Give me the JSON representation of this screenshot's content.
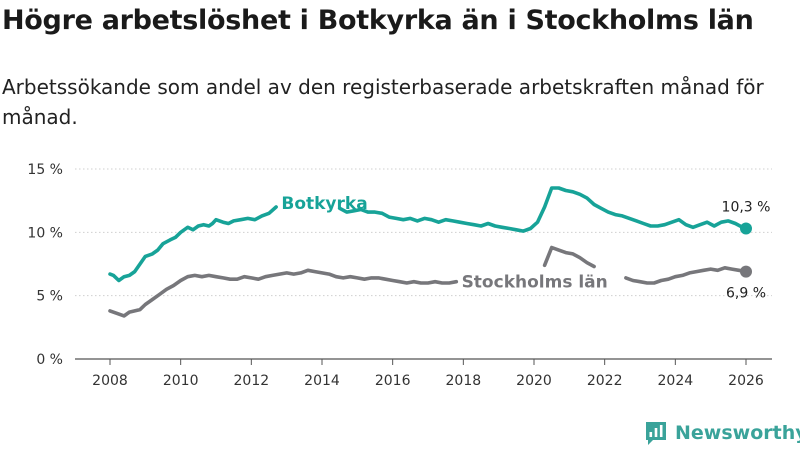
{
  "title": "Högre arbetslöshet i Botkyrka än i Stockholms län",
  "subtitle": "Arbetssökande som andel av den registerbaserade arbetskraften månad för månad.",
  "brand": {
    "name": "Newsworthy",
    "color": "#3aa39a"
  },
  "chart_data": {
    "type": "line",
    "xlabel": "",
    "ylabel": "",
    "xlim": [
      2007.5,
      2027.0
    ],
    "ylim": [
      0,
      15
    ],
    "y_ticks": [
      {
        "value": 0,
        "label": "0 %"
      },
      {
        "value": 5,
        "label": "5 %"
      },
      {
        "value": 10,
        "label": "10 %"
      },
      {
        "value": 15,
        "label": "15 %"
      }
    ],
    "x_ticks": [
      {
        "value": 2008,
        "label": "2008"
      },
      {
        "value": 2010,
        "label": "2010"
      },
      {
        "value": 2012,
        "label": "2012"
      },
      {
        "value": 2014,
        "label": "2014"
      },
      {
        "value": 2016,
        "label": "2016"
      },
      {
        "value": 2018,
        "label": "2018"
      },
      {
        "value": 2020,
        "label": "2020"
      },
      {
        "value": 2022,
        "label": "2022"
      },
      {
        "value": 2024,
        "label": "2024"
      },
      {
        "value": 2026,
        "label": "2026"
      }
    ],
    "grid": "horizontal",
    "series": [
      {
        "name": "Botkyrka",
        "color": "#17a398",
        "end_label": "10,3 %",
        "segments": [
          [
            [
              2008.0,
              6.7
            ],
            [
              2008.1,
              6.6
            ],
            [
              2008.25,
              6.2
            ],
            [
              2008.4,
              6.5
            ],
            [
              2008.55,
              6.6
            ],
            [
              2008.7,
              6.9
            ],
            [
              2008.85,
              7.5
            ],
            [
              2009.0,
              8.1
            ],
            [
              2009.2,
              8.3
            ],
            [
              2009.35,
              8.6
            ],
            [
              2009.5,
              9.1
            ],
            [
              2009.7,
              9.4
            ],
            [
              2009.85,
              9.6
            ],
            [
              2010.0,
              10.0
            ],
            [
              2010.2,
              10.4
            ],
            [
              2010.35,
              10.2
            ],
            [
              2010.5,
              10.5
            ],
            [
              2010.65,
              10.6
            ],
            [
              2010.8,
              10.5
            ],
            [
              2010.9,
              10.7
            ],
            [
              2011.0,
              11.0
            ],
            [
              2011.2,
              10.8
            ],
            [
              2011.35,
              10.7
            ],
            [
              2011.5,
              10.9
            ],
            [
              2011.7,
              11.0
            ],
            [
              2011.9,
              11.1
            ],
            [
              2012.1,
              11.0
            ],
            [
              2012.3,
              11.3
            ],
            [
              2012.5,
              11.5
            ],
            [
              2012.7,
              12.0
            ]
          ],
          [
            [
              2014.5,
              11.9
            ],
            [
              2014.7,
              11.6
            ],
            [
              2014.9,
              11.7
            ],
            [
              2015.1,
              11.8
            ],
            [
              2015.3,
              11.6
            ],
            [
              2015.5,
              11.6
            ],
            [
              2015.7,
              11.5
            ],
            [
              2015.9,
              11.2
            ],
            [
              2016.1,
              11.1
            ],
            [
              2016.3,
              11.0
            ],
            [
              2016.5,
              11.1
            ],
            [
              2016.7,
              10.9
            ],
            [
              2016.9,
              11.1
            ],
            [
              2017.1,
              11.0
            ],
            [
              2017.3,
              10.8
            ],
            [
              2017.5,
              11.0
            ],
            [
              2017.7,
              10.9
            ],
            [
              2017.9,
              10.8
            ],
            [
              2018.1,
              10.7
            ],
            [
              2018.3,
              10.6
            ],
            [
              2018.5,
              10.5
            ],
            [
              2018.7,
              10.7
            ],
            [
              2018.9,
              10.5
            ],
            [
              2019.1,
              10.4
            ],
            [
              2019.3,
              10.3
            ],
            [
              2019.5,
              10.2
            ],
            [
              2019.7,
              10.1
            ],
            [
              2019.9,
              10.3
            ],
            [
              2020.1,
              10.8
            ],
            [
              2020.3,
              12.0
            ],
            [
              2020.5,
              13.5
            ],
            [
              2020.7,
              13.5
            ],
            [
              2020.9,
              13.3
            ],
            [
              2021.1,
              13.2
            ],
            [
              2021.3,
              13.0
            ],
            [
              2021.5,
              12.7
            ],
            [
              2021.7,
              12.2
            ],
            [
              2021.9,
              11.9
            ],
            [
              2022.1,
              11.6
            ],
            [
              2022.3,
              11.4
            ],
            [
              2022.5,
              11.3
            ],
            [
              2022.7,
              11.1
            ],
            [
              2022.9,
              10.9
            ],
            [
              2023.1,
              10.7
            ],
            [
              2023.3,
              10.5
            ],
            [
              2023.5,
              10.5
            ],
            [
              2023.7,
              10.6
            ],
            [
              2023.9,
              10.8
            ],
            [
              2024.1,
              11.0
            ],
            [
              2024.3,
              10.6
            ],
            [
              2024.5,
              10.4
            ],
            [
              2024.7,
              10.6
            ],
            [
              2024.9,
              10.8
            ],
            [
              2025.1,
              10.5
            ],
            [
              2025.3,
              10.8
            ],
            [
              2025.5,
              10.9
            ],
            [
              2025.7,
              10.7
            ],
            [
              2025.9,
              10.4
            ],
            [
              2026.0,
              10.3
            ]
          ]
        ],
        "label": {
          "text": "Botkyrka",
          "x": 2012.85,
          "y": 12.3
        }
      },
      {
        "name": "Stockholms län",
        "color": "#77777b",
        "end_label": "6,9 %",
        "segments": [
          [
            [
              2008.0,
              3.8
            ],
            [
              2008.2,
              3.6
            ],
            [
              2008.4,
              3.4
            ],
            [
              2008.55,
              3.7
            ],
            [
              2008.7,
              3.8
            ],
            [
              2008.85,
              3.9
            ],
            [
              2009.0,
              4.3
            ],
            [
              2009.2,
              4.7
            ],
            [
              2009.4,
              5.1
            ],
            [
              2009.6,
              5.5
            ],
            [
              2009.8,
              5.8
            ],
            [
              2010.0,
              6.2
            ],
            [
              2010.2,
              6.5
            ],
            [
              2010.4,
              6.6
            ],
            [
              2010.6,
              6.5
            ],
            [
              2010.8,
              6.6
            ],
            [
              2011.0,
              6.5
            ],
            [
              2011.2,
              6.4
            ],
            [
              2011.4,
              6.3
            ],
            [
              2011.6,
              6.3
            ],
            [
              2011.8,
              6.5
            ],
            [
              2012.0,
              6.4
            ],
            [
              2012.2,
              6.3
            ],
            [
              2012.4,
              6.5
            ],
            [
              2012.6,
              6.6
            ],
            [
              2012.8,
              6.7
            ],
            [
              2013.0,
              6.8
            ],
            [
              2013.2,
              6.7
            ],
            [
              2013.4,
              6.8
            ],
            [
              2013.6,
              7.0
            ],
            [
              2013.8,
              6.9
            ],
            [
              2014.0,
              6.8
            ],
            [
              2014.2,
              6.7
            ],
            [
              2014.4,
              6.5
            ],
            [
              2014.6,
              6.4
            ],
            [
              2014.8,
              6.5
            ],
            [
              2015.0,
              6.4
            ],
            [
              2015.2,
              6.3
            ],
            [
              2015.4,
              6.4
            ],
            [
              2015.6,
              6.4
            ],
            [
              2015.8,
              6.3
            ],
            [
              2016.0,
              6.2
            ],
            [
              2016.2,
              6.1
            ],
            [
              2016.4,
              6.0
            ],
            [
              2016.6,
              6.1
            ],
            [
              2016.8,
              6.0
            ],
            [
              2017.0,
              6.0
            ],
            [
              2017.2,
              6.1
            ],
            [
              2017.4,
              6.0
            ],
            [
              2017.6,
              6.0
            ],
            [
              2017.8,
              6.1
            ]
          ],
          [
            [
              2020.3,
              7.4
            ],
            [
              2020.5,
              8.8
            ],
            [
              2020.7,
              8.6
            ],
            [
              2020.9,
              8.4
            ],
            [
              2021.1,
              8.3
            ],
            [
              2021.3,
              8.0
            ],
            [
              2021.5,
              7.6
            ],
            [
              2021.7,
              7.3
            ]
          ],
          [
            [
              2022.6,
              6.4
            ],
            [
              2022.8,
              6.2
            ],
            [
              2023.0,
              6.1
            ],
            [
              2023.2,
              6.0
            ],
            [
              2023.4,
              6.0
            ],
            [
              2023.6,
              6.2
            ],
            [
              2023.8,
              6.3
            ],
            [
              2024.0,
              6.5
            ],
            [
              2024.2,
              6.6
            ],
            [
              2024.4,
              6.8
            ],
            [
              2024.6,
              6.9
            ],
            [
              2024.8,
              7.0
            ],
            [
              2025.0,
              7.1
            ],
            [
              2025.2,
              7.0
            ],
            [
              2025.4,
              7.2
            ],
            [
              2025.6,
              7.1
            ],
            [
              2025.8,
              7.0
            ],
            [
              2026.0,
              6.9
            ]
          ]
        ],
        "label": {
          "text": "Stockholms län",
          "x": 2017.95,
          "y": 6.1
        }
      }
    ]
  }
}
